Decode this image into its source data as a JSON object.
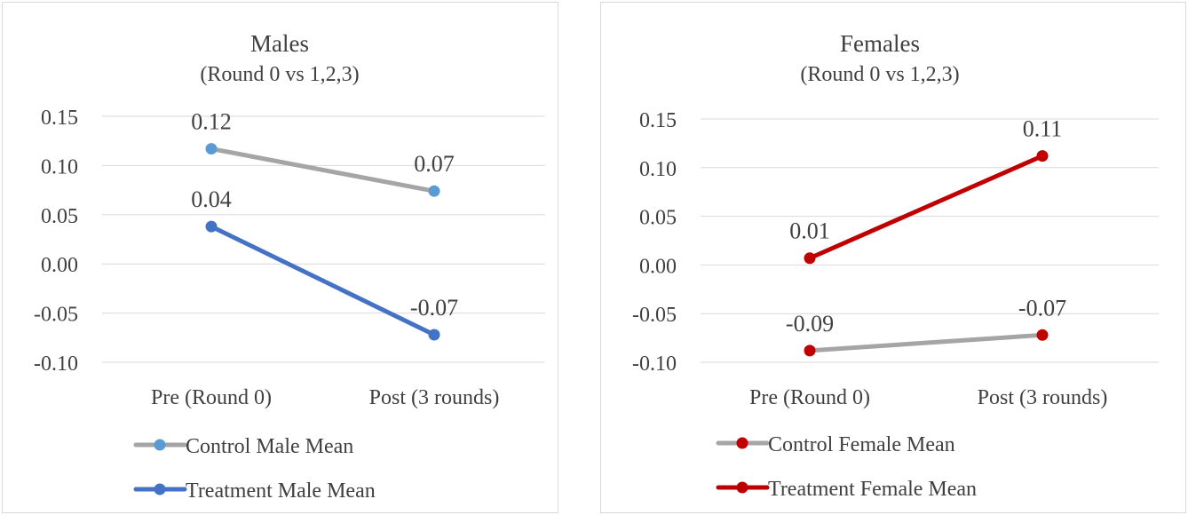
{
  "chart_data": [
    {
      "type": "line",
      "title": "Males",
      "subtitle": "(Round 0 vs 1,2,3)",
      "categories": [
        "Pre (Round 0)",
        "Post (3 rounds)"
      ],
      "ylim": [
        -0.1,
        0.15
      ],
      "yticks": [
        0.15,
        0.1,
        0.05,
        0.0,
        -0.05,
        -0.1
      ],
      "ytick_labels": [
        "0.15",
        "0.10",
        "0.05",
        "0.00",
        "-0.05",
        "-0.10"
      ],
      "grid": true,
      "legend": "bottom",
      "series": [
        {
          "name": "Control Male Mean",
          "values": [
            0.117,
            0.074
          ],
          "labels": [
            "0.12",
            "0.07"
          ],
          "line_color": "#a5a5a5",
          "marker_color": "#5b9bd5",
          "label_positions": [
            "above",
            "above"
          ]
        },
        {
          "name": "Treatment Male Mean",
          "values": [
            0.038,
            -0.072
          ],
          "labels": [
            "0.04",
            "-0.07"
          ],
          "line_color": "#4472c4",
          "marker_color": "#4472c4",
          "label_positions": [
            "above",
            "above"
          ]
        }
      ]
    },
    {
      "type": "line",
      "title": "Females",
      "subtitle": "(Round 0 vs 1,2,3)",
      "categories": [
        "Pre (Round 0)",
        "Post (3 rounds)"
      ],
      "ylim": [
        -0.1,
        0.15
      ],
      "yticks": [
        0.15,
        0.1,
        0.05,
        0.0,
        -0.05,
        -0.1
      ],
      "ytick_labels": [
        "0.15",
        "0.10",
        "0.05",
        "0.00",
        "-0.05",
        "-0.10"
      ],
      "grid": true,
      "legend": "bottom",
      "series": [
        {
          "name": "Control Female Mean",
          "values": [
            -0.088,
            -0.072
          ],
          "labels": [
            "-0.09",
            "-0.07"
          ],
          "line_color": "#a5a5a5",
          "marker_color": "#c00000",
          "label_positions": [
            "above",
            "above"
          ]
        },
        {
          "name": "Treatment Female Mean",
          "values": [
            0.007,
            0.112
          ],
          "labels": [
            "0.01",
            "0.11"
          ],
          "line_color": "#c00000",
          "marker_color": "#c00000",
          "label_positions": [
            "above",
            "above"
          ]
        }
      ]
    }
  ]
}
